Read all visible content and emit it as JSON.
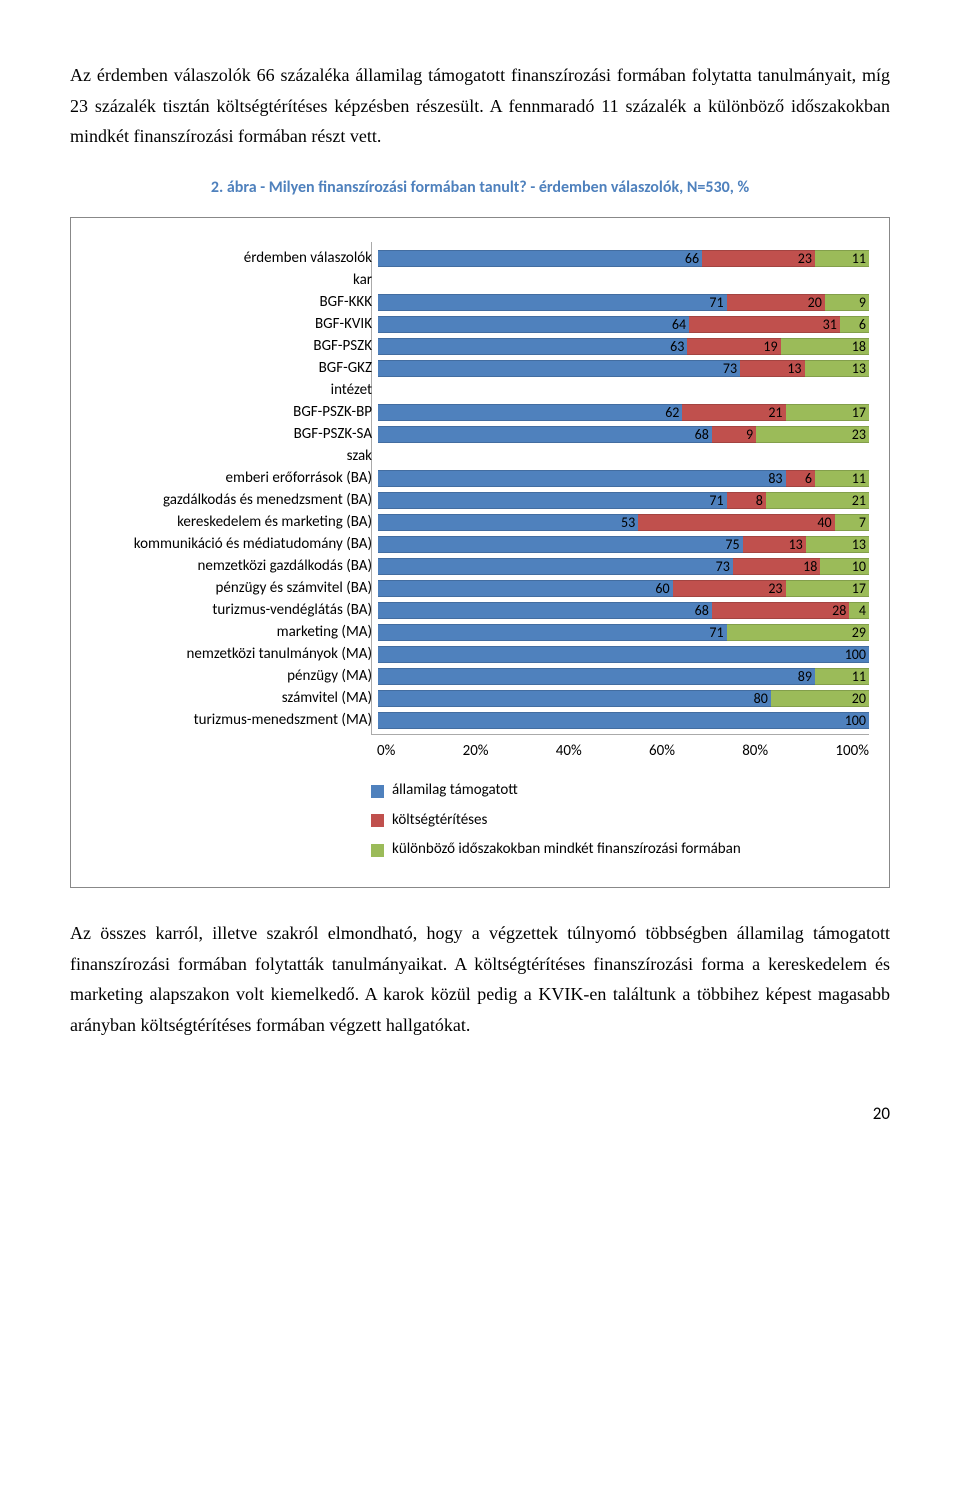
{
  "para1": "Az érdemben válaszolók 66 százaléka államilag támogatott finanszírozási formában folytatta tanulmányait, míg 23 százalék tisztán költségtérítéses képzésben részesült. A fennmaradó 11 százalék a különböző időszakokban mindkét finanszírozási formában részt vett.",
  "chart_title": "2. ábra - Milyen finanszírozási formában tanult? - érdemben válaszolók, N=530, %",
  "legend": {
    "s1": "államilag támogatott",
    "s2": "költségtérítéses",
    "s3": "különböző időszakokban mindkét finanszírozási formában"
  },
  "axis_ticks": [
    "0%",
    "20%",
    "40%",
    "60%",
    "80%",
    "100%"
  ],
  "chart": {
    "type": "stacked-bar-horizontal",
    "colors": {
      "s1": "#4f81bd",
      "s2": "#c0504d",
      "s3": "#9bbb59"
    },
    "background": "#ffffff",
    "label_fontsize": 15,
    "value_fontsize": 14,
    "rows": [
      {
        "label": "érdemben válaszolók",
        "v": [
          66,
          23,
          11
        ]
      },
      {
        "label": "kar",
        "v": null
      },
      {
        "label": "BGF-KKK",
        "v": [
          71,
          20,
          9
        ]
      },
      {
        "label": "BGF-KVIK",
        "v": [
          64,
          31,
          6
        ]
      },
      {
        "label": "BGF-PSZK",
        "v": [
          63,
          19,
          18
        ]
      },
      {
        "label": "BGF-GKZ",
        "v": [
          73,
          13,
          13
        ]
      },
      {
        "label": "intézet",
        "v": null
      },
      {
        "label": "BGF-PSZK-BP",
        "v": [
          62,
          21,
          17
        ]
      },
      {
        "label": "BGF-PSZK-SA",
        "v": [
          68,
          9,
          23
        ]
      },
      {
        "label": "szak",
        "v": null
      },
      {
        "label": "emberi erőforrások (BA)",
        "v": [
          83,
          6,
          11
        ]
      },
      {
        "label": "gazdálkodás és menedzsment (BA)",
        "v": [
          71,
          8,
          21
        ]
      },
      {
        "label": "kereskedelem és marketing (BA)",
        "v": [
          53,
          40,
          7
        ]
      },
      {
        "label": "kommunikáció és médiatudomány (BA)",
        "v": [
          75,
          13,
          13
        ]
      },
      {
        "label": "nemzetközi gazdálkodás (BA)",
        "v": [
          73,
          18,
          10
        ]
      },
      {
        "label": "pénzügy és számvitel (BA)",
        "v": [
          60,
          23,
          17
        ]
      },
      {
        "label": "turizmus-vendéglátás (BA)",
        "v": [
          68,
          28,
          4
        ]
      },
      {
        "label": "marketing (MA)",
        "v": [
          71,
          0,
          29
        ]
      },
      {
        "label": "nemzetközi tanulmányok (MA)",
        "v": [
          100,
          0,
          0
        ]
      },
      {
        "label": "pénzügy (MA)",
        "v": [
          89,
          0,
          11
        ]
      },
      {
        "label": "számvitel (MA)",
        "v": [
          80,
          0,
          20
        ]
      },
      {
        "label": "turizmus-menedszment (MA)",
        "v": [
          100,
          0,
          0
        ]
      }
    ]
  },
  "para2": "Az összes karról, illetve szakról elmondható, hogy a végzettek túlnyomó többségben államilag támogatott finanszírozási formában folytatták tanulmányaikat. A költségtérítéses finanszírozási forma a kereskedelem és marketing alapszakon volt kiemelkedő. A karok közül pedig a KVIK-en találtunk a többihez képest magasabb arányban költségtérítéses formában végzett hallgatókat.",
  "page_number": "20"
}
